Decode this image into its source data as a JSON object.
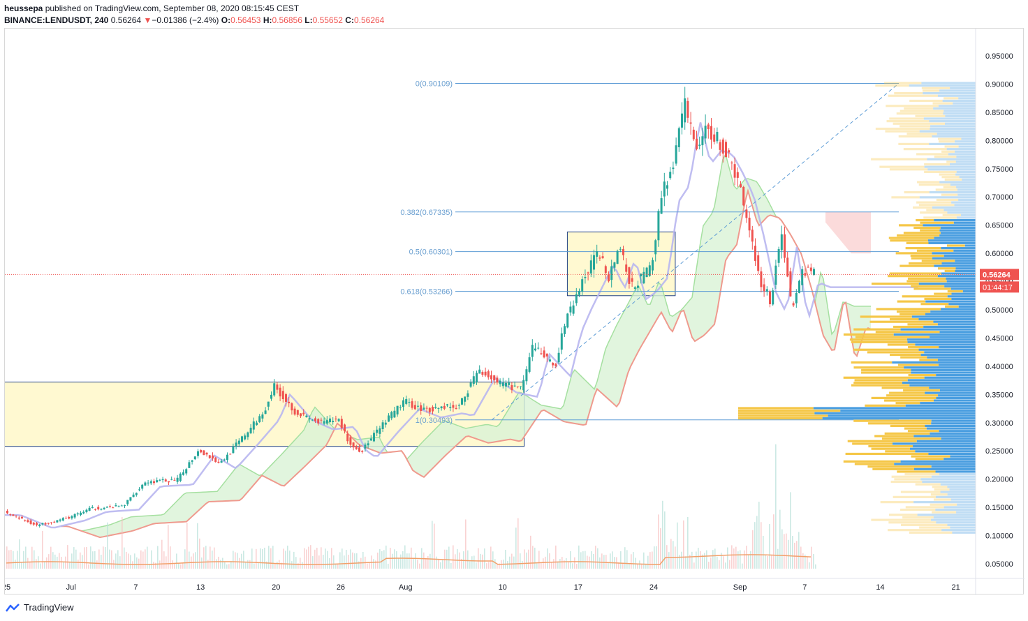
{
  "header": {
    "publisher": "heussepa",
    "published_text": "published on TradingView.com, September 08, 2020 08:15:45 CEST",
    "symbol": "BINANCE:LENDUSDT, 240",
    "last": "0.56264",
    "change_arrow": "▼",
    "change": "−0.01386 (−2.4%)",
    "o_label": "O:",
    "o": "0.56453",
    "h_label": "H:",
    "h": "0.56856",
    "l_label": "L:",
    "l": "0.55652",
    "c_label": "C:",
    "c": "0.56264"
  },
  "footer": {
    "brand": "TradingView"
  },
  "colors": {
    "up": "#26a69a",
    "down": "#ef5350",
    "fib": "#5b9bd5",
    "fib_text": "#6a9fd0",
    "box_fill": "#fff9d1",
    "box_border": "#1f3f85",
    "cloud_fill": "#d9f2d6",
    "cloud_line": "#a5e0a0",
    "base_line": "#ef9a8e",
    "conv_line": "#b8b6f0",
    "vol_ma": "#f2a06a",
    "price_tag": "#ef5350",
    "vp_up": "#f5c748",
    "vp_down": "#4a9ee0"
  },
  "chart_data": {
    "type": "candlestick",
    "y_axis": {
      "min": 0.05,
      "max": 0.95,
      "step": 0.05,
      "ticks": [
        "0.95000",
        "0.90000",
        "0.85000",
        "0.80000",
        "0.75000",
        "0.70000",
        "0.65000",
        "0.60000",
        "0.55000",
        "0.50000",
        "0.45000",
        "0.40000",
        "0.35000",
        "0.30000",
        "0.25000",
        "0.20000",
        "0.15000",
        "0.10000",
        "0.05000"
      ]
    },
    "x_axis": {
      "ticks": [
        "25",
        "Jul",
        "7",
        "13",
        "20",
        "26",
        "Aug",
        "10",
        "17",
        "24",
        "Sep",
        "7",
        "14",
        "21"
      ]
    },
    "last_price_tag": "0.56264",
    "countdown_tag": "01:44:17",
    "fib_levels": [
      {
        "label": "0(0.90109)",
        "value": 0.90109
      },
      {
        "label": "0.382(0.67335)",
        "value": 0.67335
      },
      {
        "label": "0.5(0.60301)",
        "value": 0.60301
      },
      {
        "label": "0.618(0.53266)",
        "value": 0.53266
      },
      {
        "label": "1(0.30493)",
        "value": 0.30493
      }
    ],
    "boxes": [
      {
        "from": "2020-06-17",
        "to": "2020-08-12",
        "top": 0.372,
        "bottom": 0.258
      },
      {
        "from": "2020-08-16",
        "to": "2020-08-26",
        "top": 0.638,
        "bottom": 0.525
      }
    ],
    "price_path": [
      [
        "2020-06-25",
        0.142
      ],
      [
        "2020-06-28",
        0.118
      ],
      [
        "2020-07-01",
        0.132
      ],
      [
        "2020-07-03",
        0.148
      ],
      [
        "2020-07-06",
        0.152
      ],
      [
        "2020-07-08",
        0.195
      ],
      [
        "2020-07-11",
        0.198
      ],
      [
        "2020-07-13",
        0.252
      ],
      [
        "2020-07-15",
        0.228
      ],
      [
        "2020-07-17",
        0.272
      ],
      [
        "2020-07-19",
        0.318
      ],
      [
        "2020-07-20",
        0.365
      ],
      [
        "2020-07-22",
        0.318
      ],
      [
        "2020-07-24",
        0.3
      ],
      [
        "2020-07-26",
        0.305
      ],
      [
        "2020-07-27",
        0.262
      ],
      [
        "2020-07-28",
        0.248
      ],
      [
        "2020-07-30",
        0.295
      ],
      [
        "2020-08-01",
        0.338
      ],
      [
        "2020-08-03",
        0.322
      ],
      [
        "2020-08-05",
        0.33
      ],
      [
        "2020-08-06",
        0.325
      ],
      [
        "2020-08-08",
        0.395
      ],
      [
        "2020-08-10",
        0.368
      ],
      [
        "2020-08-12",
        0.36
      ],
      [
        "2020-08-13",
        0.44
      ],
      [
        "2020-08-15",
        0.398
      ],
      [
        "2020-08-16",
        0.48
      ],
      [
        "2020-08-17",
        0.525
      ],
      [
        "2020-08-19",
        0.605
      ],
      [
        "2020-08-20",
        0.56
      ],
      [
        "2020-08-21",
        0.615
      ],
      [
        "2020-08-22",
        0.54
      ],
      [
        "2020-08-23",
        0.555
      ],
      [
        "2020-08-24",
        0.58
      ],
      [
        "2020-08-25",
        0.72
      ],
      [
        "2020-08-26",
        0.75
      ],
      [
        "2020-08-27",
        0.87
      ],
      [
        "2020-08-28",
        0.79
      ],
      [
        "2020-08-29",
        0.815
      ],
      [
        "2020-08-30",
        0.808
      ],
      [
        "2020-08-31",
        0.772
      ],
      [
        "2020-09-01",
        0.73
      ],
      [
        "2020-09-02",
        0.65
      ],
      [
        "2020-09-03",
        0.555
      ],
      [
        "2020-09-04",
        0.515
      ],
      [
        "2020-09-05",
        0.64
      ],
      [
        "2020-09-06",
        0.5
      ],
      [
        "2020-09-07",
        0.572
      ],
      [
        "2020-09-08",
        0.5626
      ]
    ]
  }
}
